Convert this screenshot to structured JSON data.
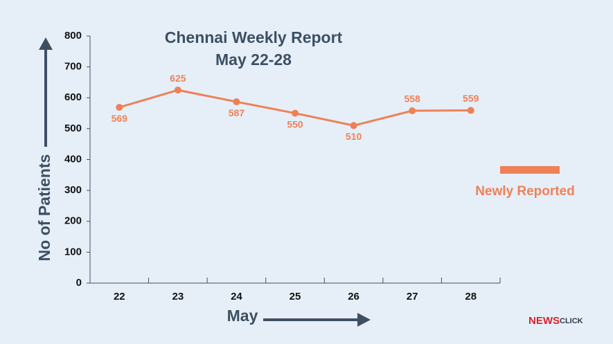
{
  "chart_data": {
    "type": "line",
    "title": "Chennai Weekly Report",
    "subtitle": "May 22-28",
    "x_label": "May",
    "y_label": "No of Patients",
    "categories": [
      "22",
      "23",
      "24",
      "25",
      "26",
      "27",
      "28"
    ],
    "series": [
      {
        "name": "Newly Reported",
        "color": "#ef8057",
        "values": [
          569,
          625,
          587,
          550,
          510,
          558,
          559
        ]
      }
    ],
    "ylim": [
      0,
      800
    ],
    "yticks": [
      0,
      100,
      200,
      300,
      400,
      500,
      600,
      700,
      800
    ],
    "legend": "right",
    "logo": {
      "part1": "NEWS",
      "part2": "CLICK"
    }
  }
}
